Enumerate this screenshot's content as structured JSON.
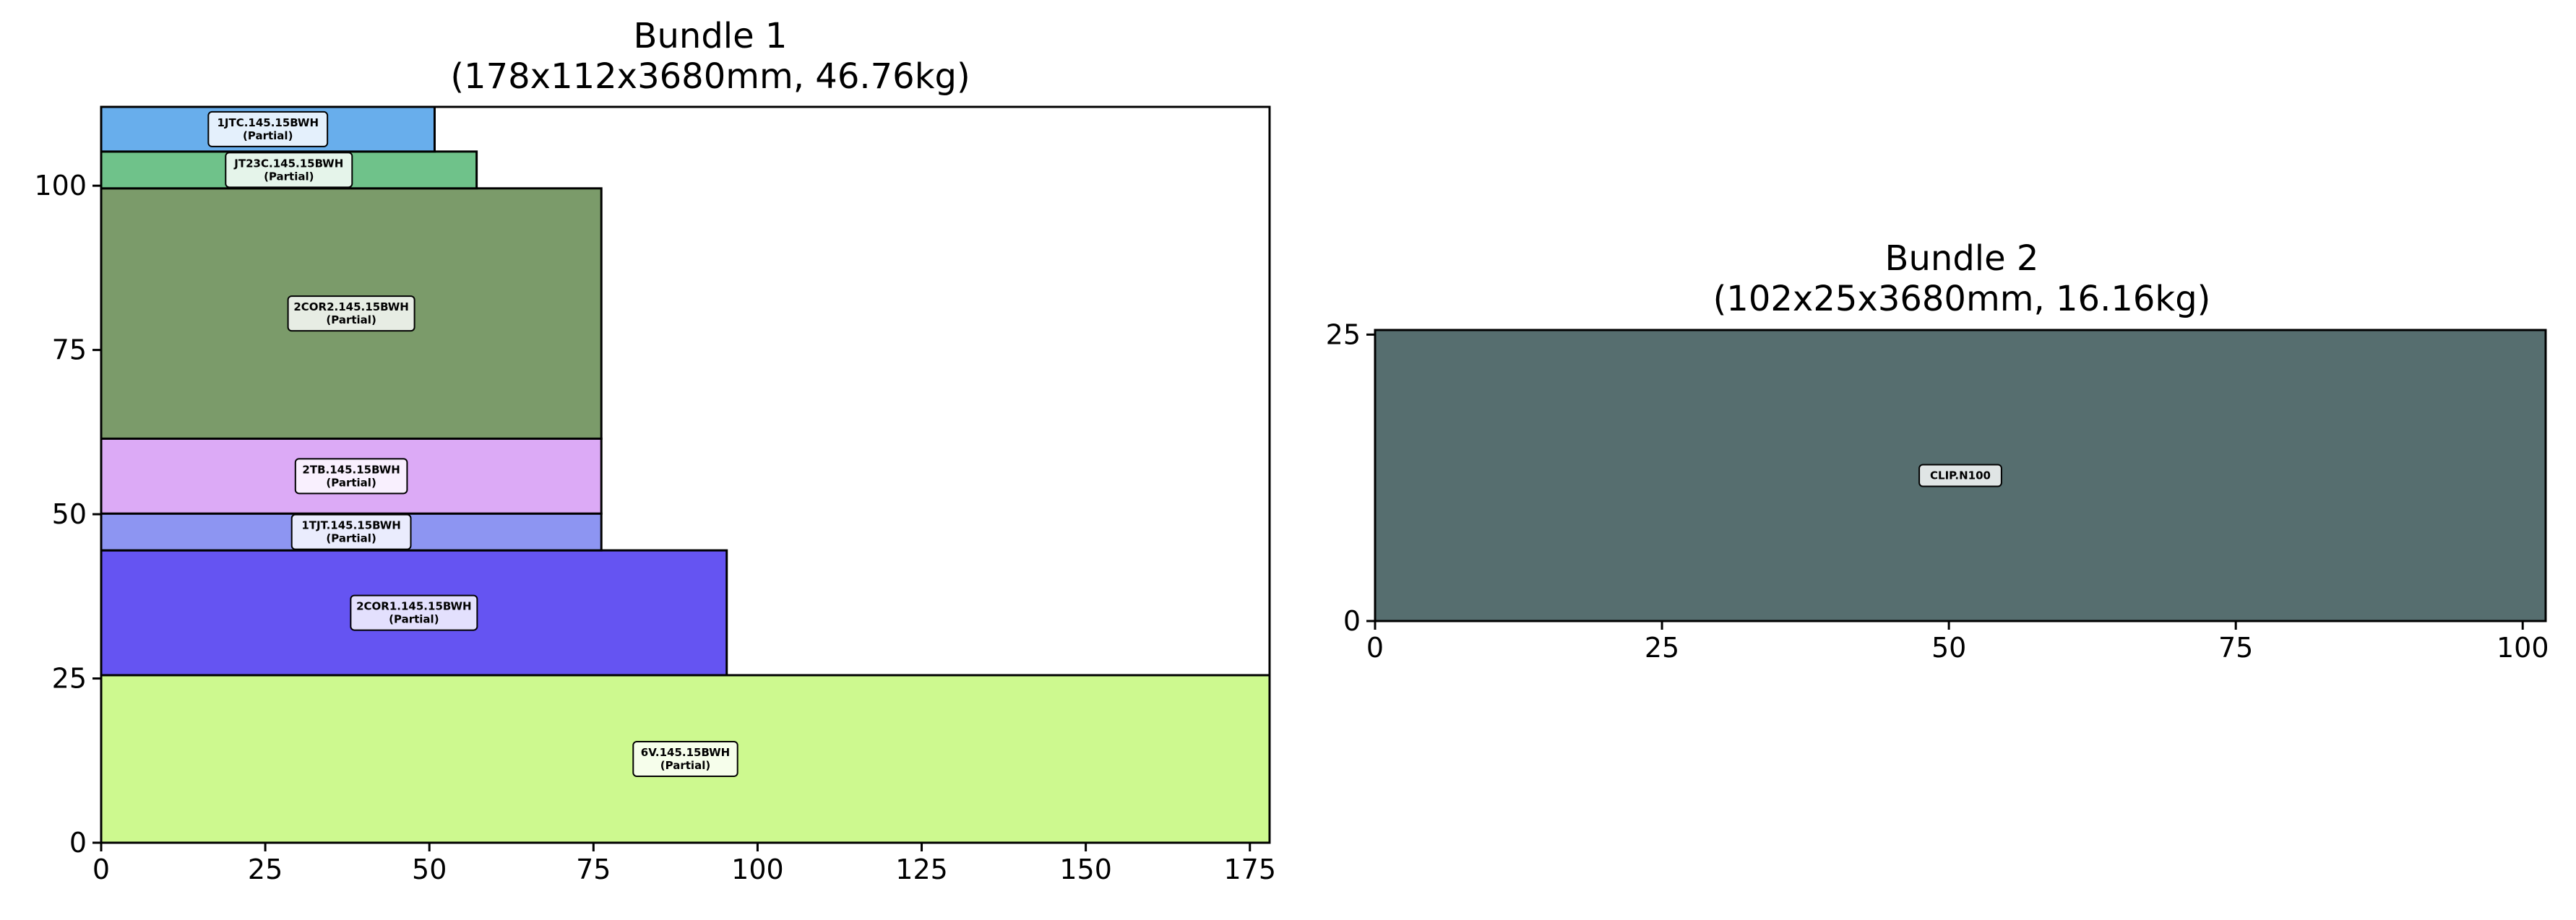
{
  "chart_data": [
    {
      "type": "packing",
      "title": "Bundle 1",
      "subtitle": "(178x112x3680mm, 46.76kg)",
      "xlim": [
        0,
        178
      ],
      "ylim": [
        0,
        112
      ],
      "xticks": [
        0,
        25,
        50,
        75,
        100,
        125,
        150,
        175
      ],
      "yticks": [
        0,
        25,
        50,
        75,
        100
      ],
      "grid": false,
      "items": [
        {
          "name": "6V.145.15BWH",
          "note": "(Partial)",
          "x": 0,
          "y": 0,
          "w": 178,
          "h": 25.5,
          "color": "#cdf98f"
        },
        {
          "name": "2COR1.145.15BWH",
          "note": "(Partial)",
          "x": 0,
          "y": 25.5,
          "w": 95.3,
          "h": 19,
          "color": "#6554f2"
        },
        {
          "name": "1TJT.145.15BWH",
          "note": "(Partial)",
          "x": 0,
          "y": 44.5,
          "w": 76.2,
          "h": 5.6,
          "color": "#8d95f2"
        },
        {
          "name": "2TB.145.15BWH",
          "note": "(Partial)",
          "x": 0,
          "y": 50.1,
          "w": 76.2,
          "h": 11.4,
          "color": "#dcaaf6"
        },
        {
          "name": "2COR2.145.15BWH",
          "note": "(Partial)",
          "x": 0,
          "y": 61.5,
          "w": 76.2,
          "h": 38.1,
          "color": "#7b9b6a"
        },
        {
          "name": "JT23C.145.15BWH",
          "note": "(Partial)",
          "x": 0,
          "y": 99.6,
          "w": 57.2,
          "h": 5.6,
          "color": "#6fc28a"
        },
        {
          "name": "1JTC.145.15BWH",
          "note": "(Partial)",
          "x": 0,
          "y": 105.2,
          "w": 50.8,
          "h": 6.8,
          "color": "#68aeec"
        }
      ]
    },
    {
      "type": "packing",
      "title": "Bundle 2",
      "subtitle": "(102x25x3680mm, 16.16kg)",
      "xlim": [
        0,
        102
      ],
      "ylim": [
        0,
        25.4
      ],
      "xticks": [
        0,
        25,
        50,
        75,
        100
      ],
      "yticks": [
        0,
        25
      ],
      "grid": false,
      "items": [
        {
          "name": "CLIP.N100",
          "note": "",
          "x": 0,
          "y": 0,
          "w": 102,
          "h": 25.4,
          "color": "#566e6f"
        }
      ]
    }
  ]
}
